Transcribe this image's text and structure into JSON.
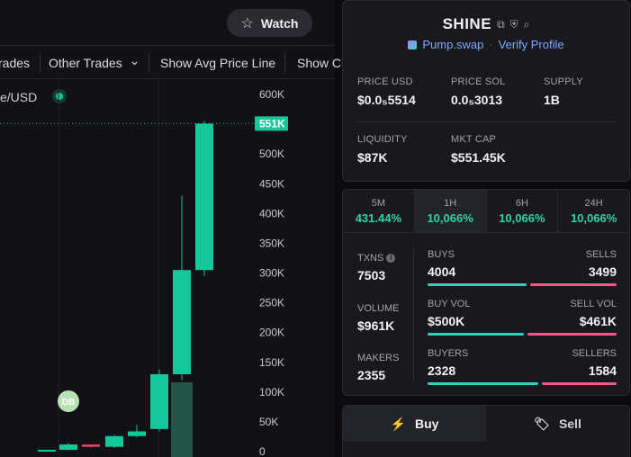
{
  "header": {
    "watch_label": "Watch",
    "watch_icon": "☆"
  },
  "toolbar": {
    "items": [
      "rades",
      "Other Trades",
      "Show Avg Price Line",
      "Show C"
    ],
    "other_trades_chevron": "⌄"
  },
  "chart": {
    "symbol_partial": "e/USD",
    "price_axis": [
      "600K",
      "550K",
      "500K",
      "450K",
      "400K",
      "350K",
      "300K",
      "250K",
      "200K",
      "150K",
      "100K",
      "50K",
      "0"
    ],
    "current_price_label": "551K",
    "marker_label": "DB",
    "colors": {
      "up": "#16c79a",
      "down": "#e0455f",
      "current": "#16c79a"
    }
  },
  "chart_data": {
    "type": "candlestick",
    "ylim": [
      0,
      600000
    ],
    "y_tick_labels": [
      "600K",
      "550K",
      "500K",
      "450K",
      "400K",
      "350K",
      "300K",
      "250K",
      "200K",
      "150K",
      "100K",
      "50K",
      "0"
    ],
    "candles": [
      {
        "open": 0,
        "high": 3000,
        "low": 0,
        "close": 3000
      },
      {
        "open": 3000,
        "high": 14000,
        "low": 2000,
        "close": 12000
      },
      {
        "open": 12000,
        "high": 12000,
        "low": 7000,
        "close": 8000
      },
      {
        "open": 8000,
        "high": 28000,
        "low": 6000,
        "close": 26000
      },
      {
        "open": 26000,
        "high": 45000,
        "low": 24000,
        "close": 34000
      },
      {
        "open": 38000,
        "high": 138000,
        "low": 34000,
        "close": 130000
      },
      {
        "open": 130000,
        "high": 430000,
        "low": 120000,
        "close": 305000
      },
      {
        "open": 305000,
        "high": 555000,
        "low": 295000,
        "close": 551000
      }
    ],
    "current_price": 551000
  },
  "token": {
    "name": "SHINE",
    "dex": "Pump.swap",
    "verify_label": "Verify Profile",
    "stats": [
      {
        "label": "PRICE USD",
        "value": "$0.0₅5514"
      },
      {
        "label": "PRICE SOL",
        "value": "0.0₅3013"
      },
      {
        "label": "SUPPLY",
        "value": "1B"
      },
      {
        "label": "LIQUIDITY",
        "value": "$87K"
      },
      {
        "label": "MKT CAP",
        "value": "$551.45K"
      }
    ]
  },
  "changes": [
    {
      "tf": "5M",
      "value": "431.44%"
    },
    {
      "tf": "1H",
      "value": "10,066%"
    },
    {
      "tf": "6H",
      "value": "10,066%"
    },
    {
      "tf": "24H",
      "value": "10,066%"
    }
  ],
  "txns": {
    "txns_label": "TXNS",
    "txns_value": "7503",
    "volume_label": "VOLUME",
    "volume_value": "$961K",
    "makers_label": "MAKERS",
    "makers_value": "2355",
    "buys_label": "BUYS",
    "buys_value": "4004",
    "sells_label": "SELLS",
    "sells_value": "3499",
    "buy_vol_label": "BUY VOL",
    "buy_vol_value": "$500K",
    "sell_vol_label": "SELL VOL",
    "sell_vol_value": "$461K",
    "buyers_label": "BUYERS",
    "buyers_value": "2328",
    "sellers_label": "SELLERS",
    "sellers_value": "1584",
    "buys_share": 0.534,
    "buy_vol_share": 0.52,
    "buyers_share": 0.595
  },
  "trade": {
    "buy_label": "Buy",
    "sell_label": "Sell"
  }
}
